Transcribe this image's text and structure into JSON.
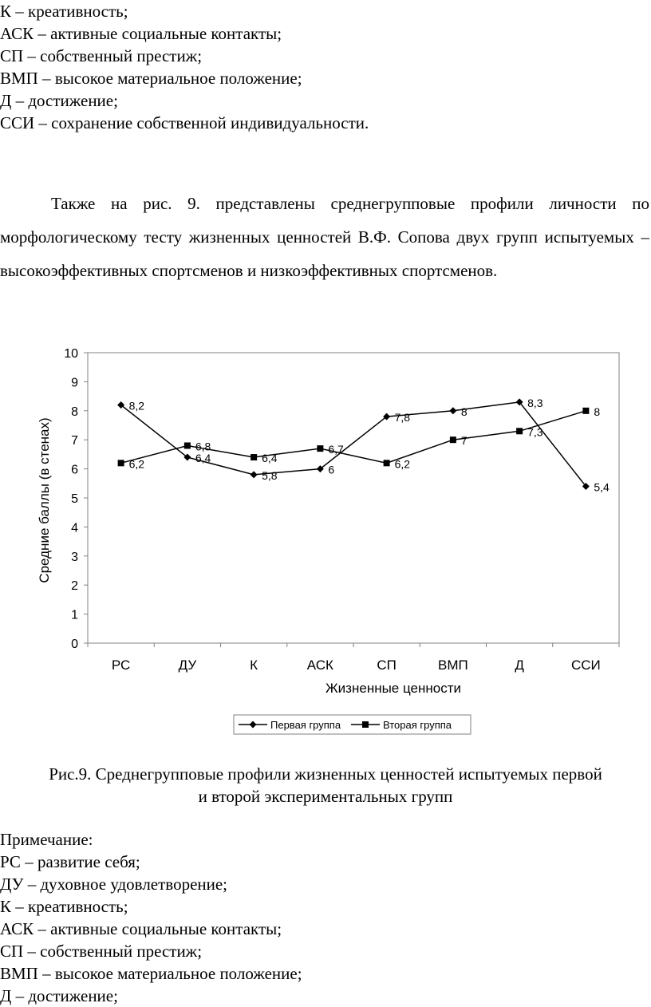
{
  "top_legend": [
    "К – креативность;",
    "АСК – активные социальные контакты;",
    "СП – собственный престиж;",
    "ВМП – высокое материальное положение;",
    "Д – достижение;",
    "ССИ – сохранение собственной индивидуальности."
  ],
  "paragraph": "Также на рис. 9. представлены среднегрупповые профили личности по морфологическому тесту жизненных ценностей В.Ф. Сопова двух групп испытуемых – высокоэффективных спортсменов и низкоэффективных спортсменов.",
  "chart_data": {
    "type": "line",
    "categories": [
      "РС",
      "ДУ",
      "К",
      "АСК",
      "СП",
      "ВМП",
      "Д",
      "ССИ"
    ],
    "series": [
      {
        "name": "Первая группа",
        "marker": "diamond",
        "values": [
          8.2,
          6.4,
          5.8,
          6,
          7.8,
          8,
          8.3,
          5.4
        ],
        "labels": [
          "8,2",
          "6,4",
          "5,8",
          "6",
          "7,8",
          "8",
          "8,3",
          "5,4"
        ]
      },
      {
        "name": "Вторая группа",
        "marker": "square",
        "values": [
          6.2,
          6.8,
          6.4,
          6.7,
          6.2,
          7,
          7.3,
          8
        ],
        "labels": [
          "6,2",
          "6,8",
          "6,4",
          "6,7",
          "6,2",
          "7",
          "7,3",
          "8"
        ]
      }
    ],
    "xlabel": "Жизненные ценности",
    "ylabel": "Средние баллы (в стенах)",
    "ylim": [
      0,
      10
    ],
    "yticks": [
      "0",
      "1",
      "2",
      "3",
      "4",
      "5",
      "6",
      "7",
      "8",
      "9",
      "10"
    ],
    "grid": false,
    "legend": "bottom",
    "line_color": "#000000"
  },
  "caption": {
    "line1": "Рис.9. Среднегрупповые профили жизненных ценностей испытуемых первой",
    "line2": "и второй экспериментальных групп"
  },
  "note_title": "Примечание:",
  "bottom_legend": [
    "РС – развитие себя;",
    "ДУ – духовное удовлетворение;",
    "К – креативность;",
    "АСК – активные социальные контакты;",
    "СП – собственный престиж;",
    "ВМП – высокое материальное положение;",
    "Д – достижение;"
  ]
}
